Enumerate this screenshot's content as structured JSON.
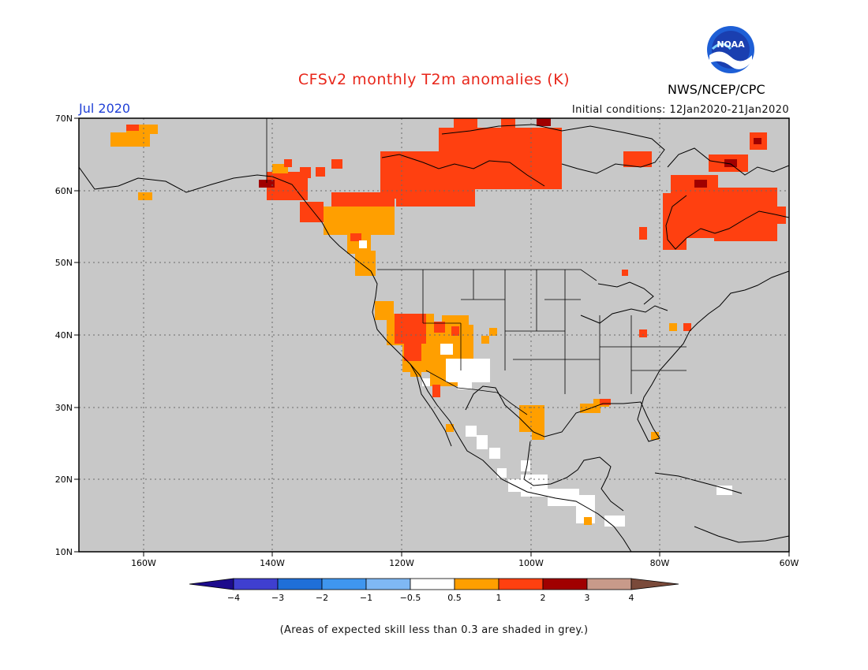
{
  "header": {
    "title": "CFSv2 monthly T2m anomalies (K)",
    "agency": "NWS/NCEP/CPC",
    "valid_month": "Jul 2020",
    "initial_conditions_label": "Initial conditions:",
    "initial_conditions_range": "12Jan2020-21Jan2020",
    "logo_text": "NOAA"
  },
  "map": {
    "lon_range": [
      -170,
      -60
    ],
    "lat_range": [
      10,
      70
    ],
    "lat_labels": [
      "70N",
      "60N",
      "50N",
      "40N",
      "30N",
      "20N",
      "10N"
    ],
    "lon_labels": [
      "160W",
      "140W",
      "120W",
      "100W",
      "80W",
      "60W"
    ],
    "background_color": "#c8c8c8",
    "anomaly_regions": [
      {
        "name": "northern-canada",
        "category": "1-2"
      },
      {
        "name": "quebec-labrador",
        "category": "1-2"
      },
      {
        "name": "western-canada",
        "category": "0.5-1"
      },
      {
        "name": "southwest-us",
        "category": "0.5-1"
      },
      {
        "name": "great-basin",
        "category": "1-2"
      },
      {
        "name": "texas",
        "category": "0.5-1"
      },
      {
        "name": "gulf-coast",
        "category": "0.5-1"
      },
      {
        "name": "mexico",
        "category": "-0.5-0.5"
      }
    ]
  },
  "colorbar": {
    "ticks": [
      "−4",
      "−3",
      "−2",
      "−1",
      "−0.5",
      "0.5",
      "1",
      "2",
      "3",
      "4"
    ],
    "colors": [
      "#1c0b8c",
      "#3f3fd0",
      "#1f6fd8",
      "#3f96ef",
      "#7fb8f4",
      "#ffffff",
      "#ff9f00",
      "#ff4010",
      "#a00000",
      "#c89a8a",
      "#7a4a3a"
    ]
  },
  "footnote": "(Areas of expected skill less than 0.3 are shaded in grey.)"
}
